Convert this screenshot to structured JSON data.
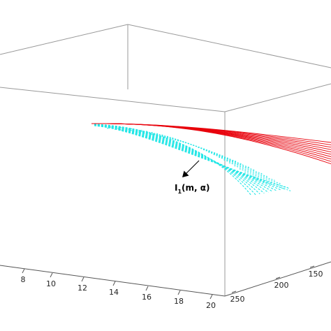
{
  "chart_data": {
    "type": "surface3d",
    "title": "",
    "xlabel": "",
    "ylabel": "",
    "zlabel": "",
    "grid": false,
    "x_ticks": [
      "8",
      "10",
      "12",
      "14",
      "16",
      "18",
      "20"
    ],
    "y_ticks": [
      "250",
      "200",
      "150"
    ],
    "colors": {
      "red_surface": "#e8000b",
      "cyan_surface": "#22e6e6",
      "box": "#999999",
      "axis": "#555555"
    },
    "surfaces": [
      {
        "color": "red",
        "line_style": "solid",
        "line_count": 10
      },
      {
        "color": "cyan",
        "line_style": "dashed",
        "line_count": 10
      }
    ],
    "annotation": {
      "base": "I",
      "subscript": "1",
      "args": "(m, α)",
      "arrow": "pointing down-left toward the cyan surface"
    }
  }
}
